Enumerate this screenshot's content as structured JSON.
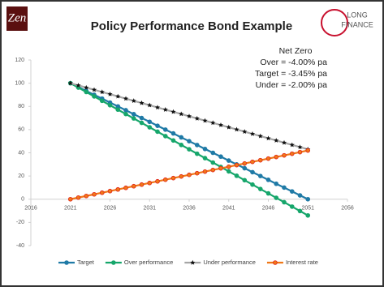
{
  "header": {
    "left_logo": "Zen",
    "right_logo": [
      "LONG",
      "FINANCE"
    ]
  },
  "chart_data": {
    "type": "line",
    "title": "Policy Performance Bond Example",
    "annotation": [
      "Net Zero",
      "Over  = -4.00% pa",
      "Target  = -3.45% pa",
      "Under  = -2.00% pa"
    ],
    "x": [
      2021,
      2022,
      2023,
      2024,
      2025,
      2026,
      2027,
      2028,
      2029,
      2030,
      2031,
      2032,
      2033,
      2034,
      2035,
      2036,
      2037,
      2038,
      2039,
      2040,
      2041,
      2042,
      2043,
      2044,
      2045,
      2046,
      2047,
      2048,
      2049,
      2050,
      2051
    ],
    "series": [
      {
        "name": "Target",
        "color": "#1f7aa6",
        "marker": "circle",
        "values": [
          100,
          96.7,
          93.3,
          90,
          86.7,
          83.3,
          80,
          76.7,
          73.3,
          70,
          66.7,
          63.3,
          60,
          56.7,
          53.3,
          50,
          46.7,
          43.3,
          40,
          36.7,
          33.3,
          30,
          26.7,
          23.3,
          20,
          16.7,
          13.3,
          10,
          6.7,
          3.3,
          0
        ]
      },
      {
        "name": "Over performance",
        "color": "#16a66b",
        "marker": "circle",
        "values": [
          100,
          96.2,
          92.4,
          88.6,
          84.8,
          81,
          77.2,
          73.4,
          69.6,
          65.8,
          62,
          58.2,
          54.4,
          50.6,
          46.8,
          43,
          39.2,
          35.4,
          31.6,
          27.8,
          24,
          20.2,
          16.4,
          12.6,
          8.8,
          5,
          1.2,
          -2.6,
          -6.4,
          -10.2,
          -14
        ]
      },
      {
        "name": "Under performance",
        "color": "#a6a6a6",
        "marker": "star",
        "marker_color": "#111111",
        "values": [
          100,
          98.1,
          96.2,
          94.3,
          92.4,
          90.5,
          88.6,
          86.7,
          84.8,
          82.9,
          81,
          79.1,
          77.2,
          75.3,
          73.4,
          71.5,
          69.6,
          67.7,
          65.8,
          63.9,
          62,
          60.1,
          58.2,
          56.3,
          54.4,
          52.5,
          50.6,
          48.7,
          46.8,
          44.9,
          43
        ]
      },
      {
        "name": "Interest rate",
        "color": "#f07818",
        "marker": "circle",
        "marker_color": "#e0201a",
        "values": [
          0,
          1.4,
          2.8,
          4.2,
          5.6,
          7,
          8.4,
          9.8,
          11.2,
          12.6,
          14,
          15.4,
          16.8,
          18.2,
          19.6,
          21,
          22.4,
          23.8,
          25.2,
          26.6,
          28,
          29.4,
          30.8,
          32.2,
          33.6,
          35,
          36.4,
          37.8,
          39.2,
          40.6,
          42
        ]
      }
    ],
    "xlim": [
      2016,
      2056
    ],
    "xticks": [
      2016,
      2021,
      2026,
      2031,
      2036,
      2041,
      2046,
      2051,
      2056
    ],
    "ylim": [
      -40,
      120
    ],
    "yticks": [
      -40,
      -20,
      0,
      20,
      40,
      60,
      80,
      100,
      120
    ],
    "grid": false,
    "legend": "bottom"
  }
}
